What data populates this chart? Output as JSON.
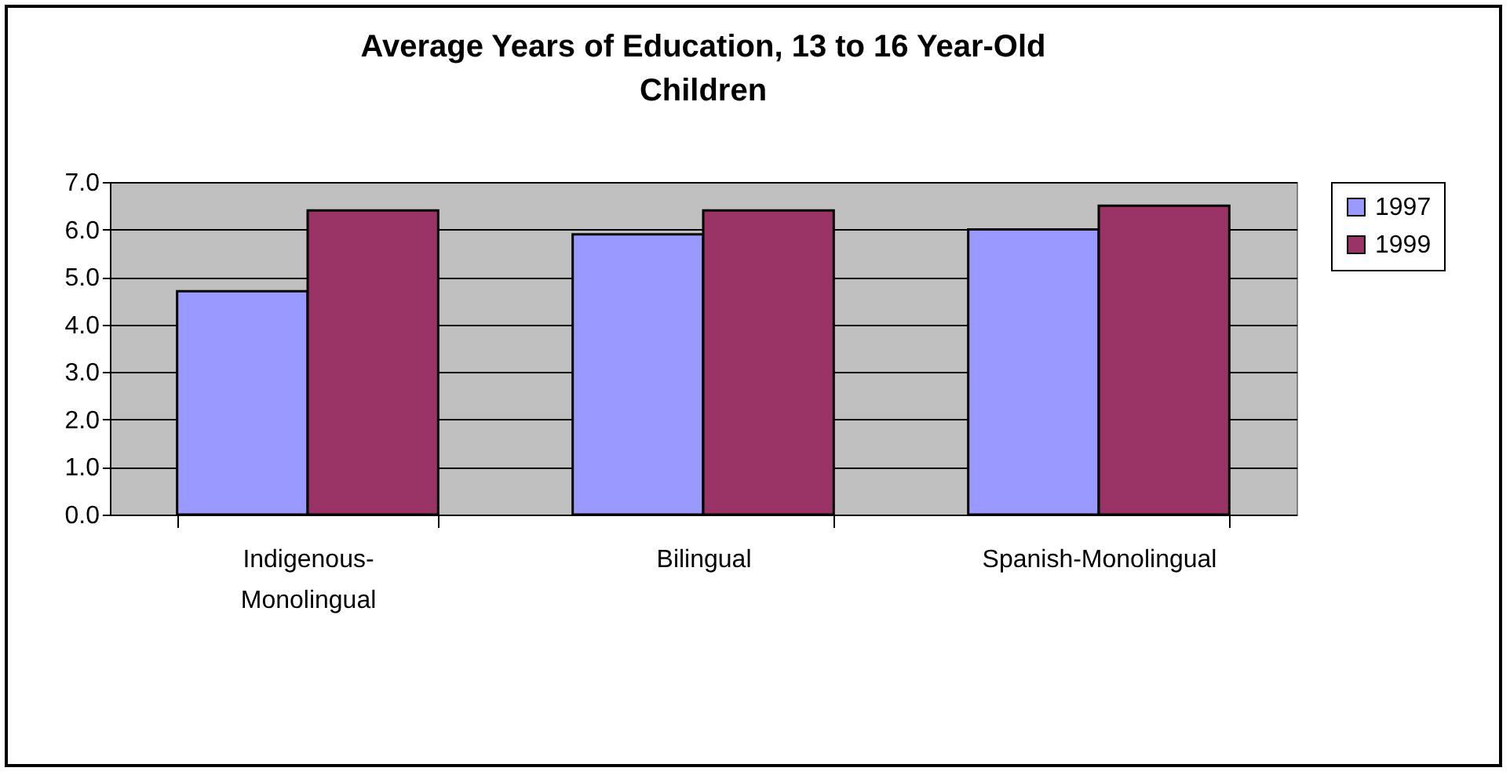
{
  "chart_data": {
    "type": "bar",
    "title": "Average Years of Education, 13 to 16 Year-Old Children",
    "categories": [
      "Indigenous-Monolingual",
      "Bilingual",
      "Spanish-Monolingual"
    ],
    "series": [
      {
        "name": "1997",
        "color": "#9999ff",
        "values": [
          4.7,
          5.9,
          6.0
        ]
      },
      {
        "name": "1999",
        "color": "#993366",
        "values": [
          6.4,
          6.4,
          6.5
        ]
      }
    ],
    "ylim": [
      0,
      7
    ],
    "yticks": [
      {
        "value": 0,
        "label": "0.0"
      },
      {
        "value": 1,
        "label": "1.0"
      },
      {
        "value": 2,
        "label": "2.0"
      },
      {
        "value": 3,
        "label": "3.0"
      },
      {
        "value": 4,
        "label": "4.0"
      },
      {
        "value": 5,
        "label": "5.0"
      },
      {
        "value": 6,
        "label": "6.0"
      },
      {
        "value": 7,
        "label": "7.0"
      }
    ],
    "grid": "y",
    "legend": "right"
  }
}
